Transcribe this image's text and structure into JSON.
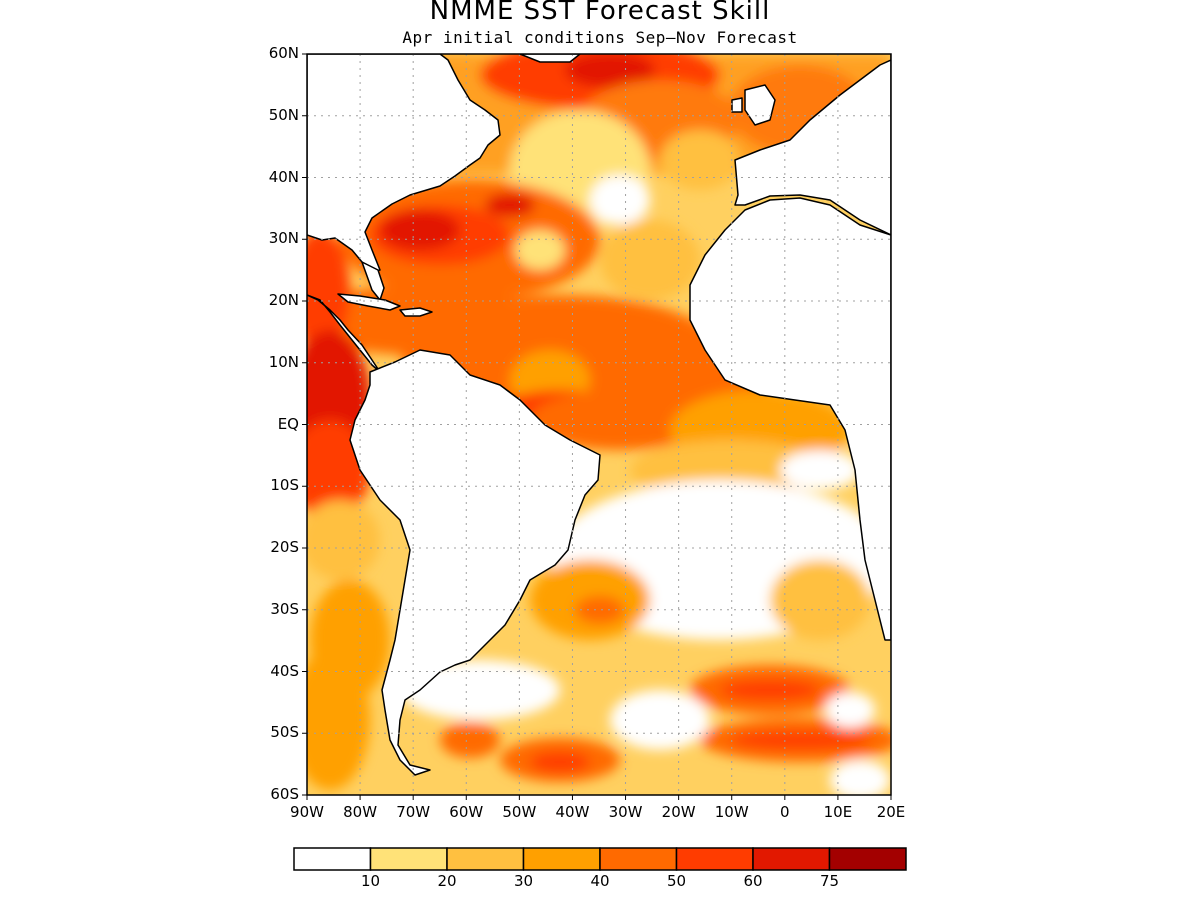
{
  "title": "NMME SST Forecast Skill",
  "subtitle": "Apr initial conditions  Sep–Nov Forecast",
  "map": {
    "lon_range": [
      -90,
      20
    ],
    "lat_range": [
      -60,
      60
    ],
    "grid": true,
    "y_ticks": [
      "60N",
      "50N",
      "40N",
      "30N",
      "20N",
      "10N",
      "EQ",
      "10S",
      "20S",
      "30S",
      "40S",
      "50S",
      "60S"
    ],
    "x_ticks": [
      "90W",
      "80W",
      "70W",
      "60W",
      "50W",
      "40W",
      "30W",
      "20W",
      "10W",
      "0",
      "10E",
      "20E"
    ]
  },
  "legend": {
    "colors": [
      "#ffffff",
      "#ffe278",
      "#ffc040",
      "#ffa000",
      "#ff6a00",
      "#ff3c00",
      "#e21800",
      "#a30000"
    ],
    "labels": [
      "10",
      "20",
      "30",
      "40",
      "50",
      "60",
      "75"
    ]
  },
  "colors": {
    "land": "#ffffff",
    "coast": "#000000",
    "grid": "#a0a0a0"
  }
}
